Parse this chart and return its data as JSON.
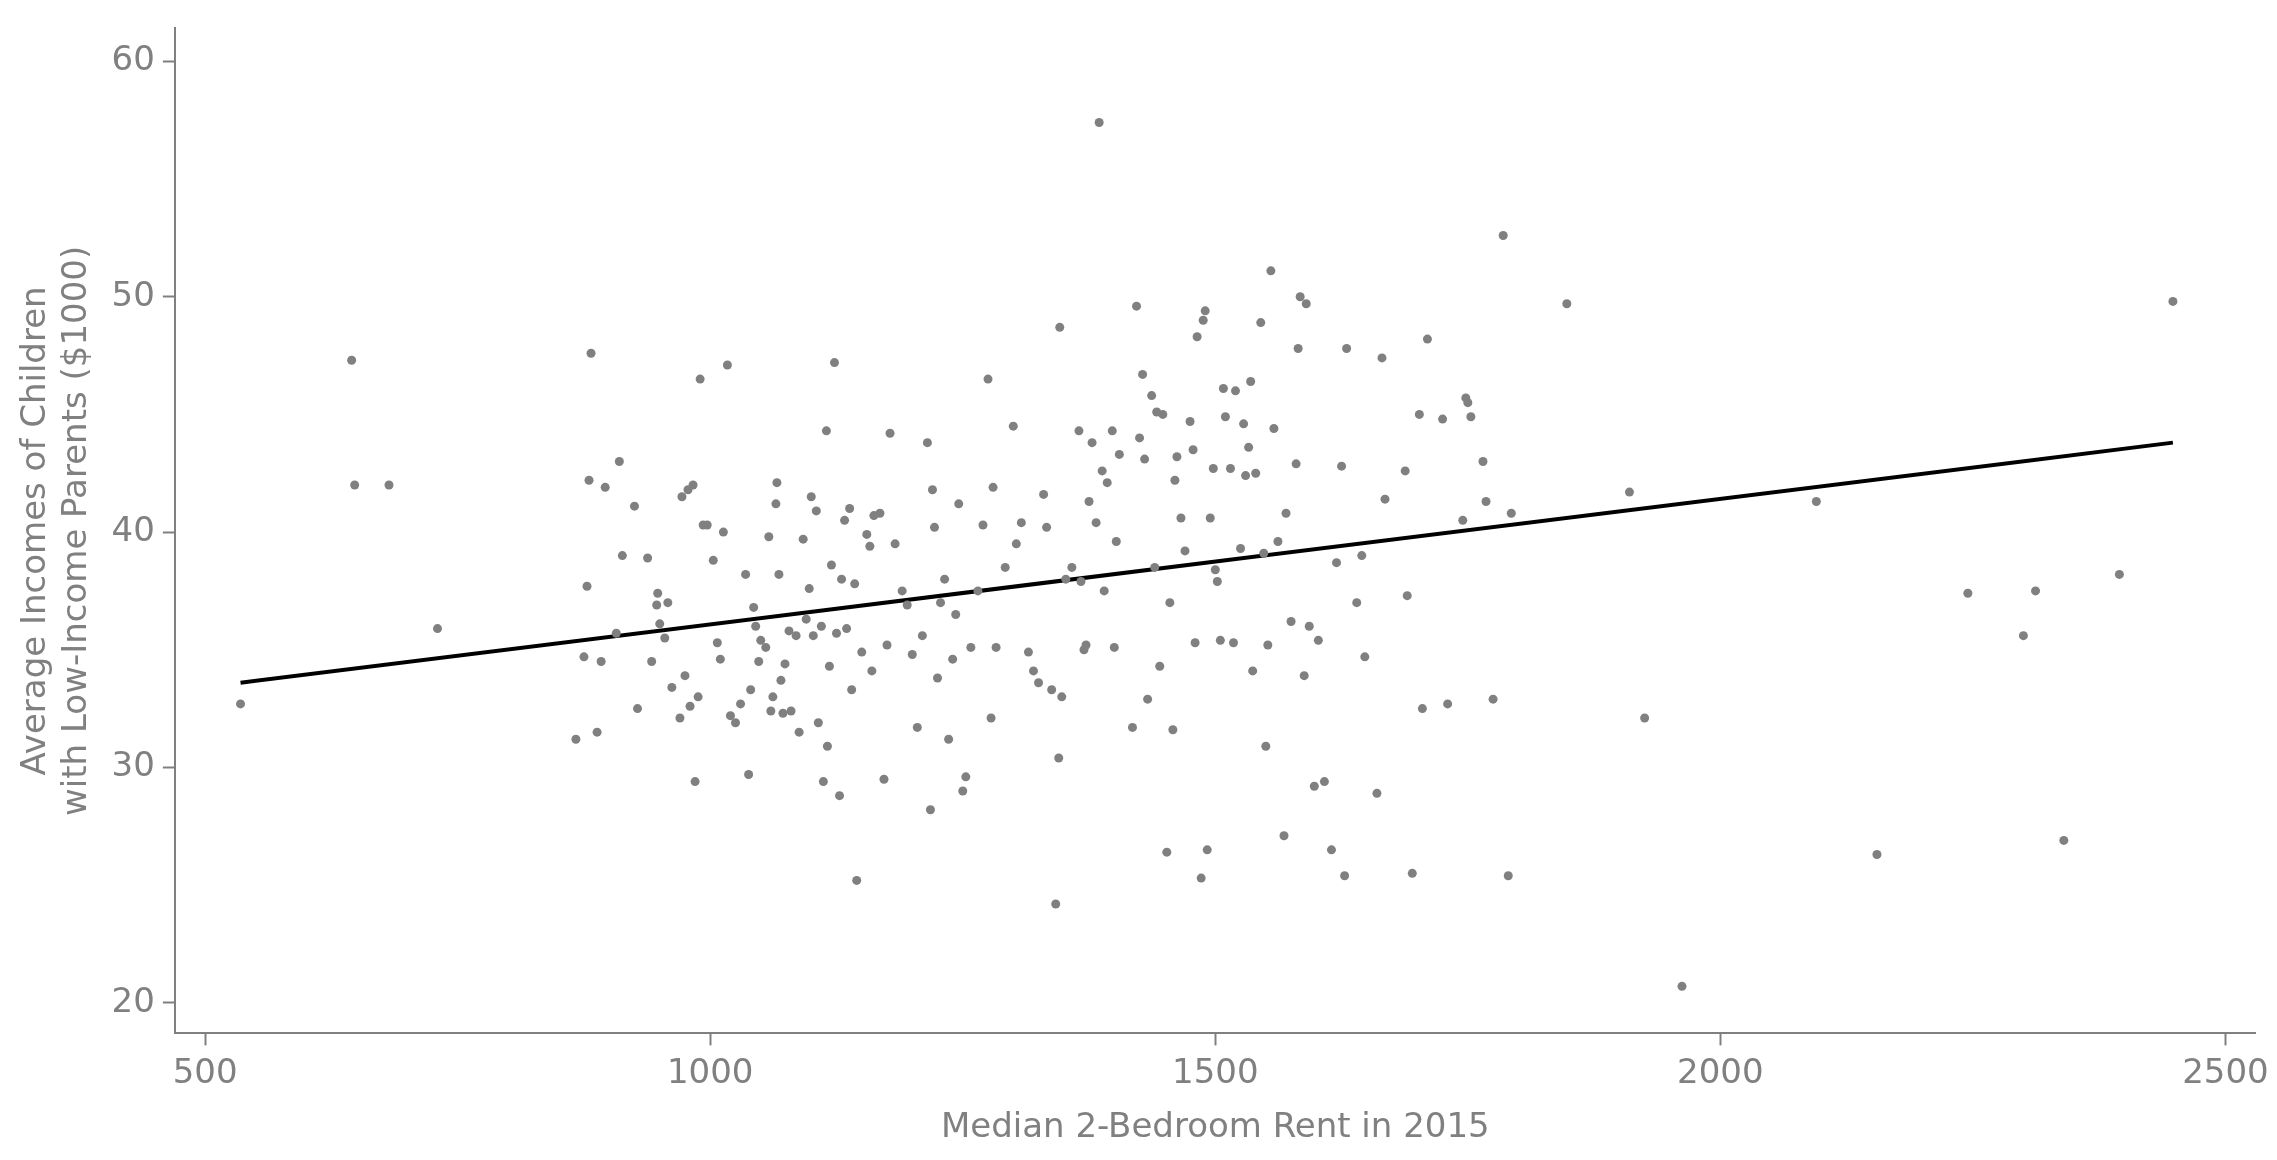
{
  "chart_data": {
    "type": "scatter",
    "xlabel": "Median 2-Bedroom Rent in 2015",
    "ylabel": "Average Incomes of Children\nwith Low-Income Parents ($1000)",
    "xlim": [
      470,
      2530
    ],
    "ylim": [
      18.7,
      61.4
    ],
    "xticks": [
      500,
      1000,
      1500,
      2000,
      2500
    ],
    "yticks": [
      20,
      30,
      40,
      50,
      60
    ],
    "series": [
      {
        "marker": "circle",
        "color": "#808080",
        "x": [
          535,
          645,
          648,
          682,
          730,
          867,
          875,
          878,
          880,
          882,
          888,
          892,
          896,
          907,
          910,
          913,
          925,
          928,
          938,
          942,
          947,
          948,
          950,
          955,
          958,
          962,
          970,
          972,
          975,
          978,
          980,
          983,
          985,
          988,
          990,
          993,
          997,
          1003,
          1007,
          1010,
          1013,
          1017,
          1020,
          1025,
          1030,
          1035,
          1038,
          1040,
          1043,
          1045,
          1048,
          1050,
          1055,
          1058,
          1060,
          1062,
          1065,
          1066,
          1068,
          1070,
          1072,
          1074,
          1078,
          1080,
          1085,
          1088,
          1092,
          1095,
          1098,
          1100,
          1102,
          1105,
          1107,
          1110,
          1112,
          1115,
          1116,
          1118,
          1120,
          1123,
          1125,
          1128,
          1130,
          1133,
          1135,
          1138,
          1140,
          1143,
          1145,
          1150,
          1155,
          1158,
          1160,
          1162,
          1168,
          1172,
          1175,
          1178,
          1183,
          1190,
          1195,
          1200,
          1205,
          1210,
          1215,
          1218,
          1220,
          1222,
          1225,
          1228,
          1232,
          1236,
          1240,
          1243,
          1246,
          1250,
          1253,
          1258,
          1265,
          1270,
          1275,
          1278,
          1280,
          1283,
          1292,
          1300,
          1303,
          1308,
          1315,
          1320,
          1325,
          1330,
          1333,
          1338,
          1342,
          1345,
          1346,
          1348,
          1352,
          1358,
          1365,
          1367,
          1370,
          1372,
          1375,
          1378,
          1382,
          1385,
          1388,
          1390,
          1393,
          1398,
          1400,
          1402,
          1405,
          1418,
          1422,
          1425,
          1428,
          1430,
          1433,
          1437,
          1440,
          1442,
          1445,
          1448,
          1452,
          1455,
          1458,
          1460,
          1462,
          1466,
          1470,
          1475,
          1478,
          1480,
          1482,
          1486,
          1488,
          1490,
          1492,
          1495,
          1498,
          1500,
          1502,
          1505,
          1508,
          1510,
          1515,
          1518,
          1520,
          1525,
          1528,
          1530,
          1533,
          1535,
          1537,
          1540,
          1545,
          1548,
          1550,
          1552,
          1555,
          1558,
          1562,
          1568,
          1570,
          1575,
          1580,
          1582,
          1584,
          1588,
          1590,
          1593,
          1598,
          1602,
          1608,
          1615,
          1620,
          1625,
          1628,
          1630,
          1640,
          1645,
          1648,
          1660,
          1665,
          1668,
          1688,
          1690,
          1695,
          1702,
          1705,
          1710,
          1725,
          1730,
          1745,
          1748,
          1750,
          1753,
          1765,
          1768,
          1775,
          1785,
          1790,
          1793,
          1848,
          1910,
          1925,
          1962,
          2095,
          2155,
          2245,
          2300,
          2312,
          2340,
          2395,
          2448
        ],
        "values": [
          32.7,
          47.3,
          42.0,
          42.0,
          35.9,
          31.2,
          34.7,
          37.7,
          42.2,
          47.6,
          31.5,
          34.5,
          41.9,
          35.7,
          43.0,
          39.0,
          41.1,
          32.5,
          38.9,
          34.5,
          36.9,
          37.4,
          36.1,
          35.5,
          37.0,
          33.4,
          32.1,
          41.5,
          33.9,
          41.8,
          32.6,
          42.0,
          29.4,
          33.0,
          46.5,
          40.3,
          40.3,
          38.8,
          35.3,
          34.6,
          40.0,
          47.1,
          32.2,
          31.9,
          32.7,
          38.2,
          29.7,
          33.3,
          36.8,
          36.0,
          34.5,
          35.4,
          35.1,
          39.8,
          32.4,
          33.0,
          41.2,
          42.1,
          38.2,
          33.7,
          32.3,
          34.4,
          35.8,
          32.4,
          35.6,
          31.5,
          39.7,
          36.3,
          37.6,
          41.5,
          35.6,
          40.9,
          31.9,
          36.0,
          29.4,
          44.3,
          30.9,
          34.3,
          38.6,
          47.2,
          35.7,
          28.8,
          38.0,
          40.5,
          35.9,
          41.0,
          33.3,
          37.8,
          25.2,
          34.9,
          39.9,
          39.4,
          34.1,
          40.7,
          40.8,
          29.5,
          35.2,
          44.2,
          39.5,
          37.5,
          36.9,
          34.8,
          31.7,
          35.6,
          43.8,
          28.2,
          41.8,
          40.2,
          33.8,
          37.0,
          38.0,
          31.2,
          34.6,
          36.5,
          41.2,
          29.0,
          29.6,
          35.1,
          37.5,
          40.3,
          46.5,
          32.1,
          41.9,
          35.1,
          38.5,
          44.5,
          39.5,
          40.4,
          34.9,
          34.1,
          33.6,
          41.6,
          40.2,
          33.3,
          24.2,
          30.4,
          48.7,
          33.0,
          38.0,
          38.5,
          44.3,
          37.9,
          35.0,
          35.2,
          41.3,
          43.8,
          40.4,
          57.4,
          42.6,
          37.5,
          42.1,
          44.3,
          35.1,
          39.6,
          43.3,
          31.7,
          49.6,
          44.0,
          46.7,
          43.1,
          32.9,
          45.8,
          38.5,
          45.1,
          34.3,
          45.0,
          26.4,
          37.0,
          31.6,
          42.2,
          43.2,
          40.6,
          39.2,
          44.7,
          43.5,
          35.3,
          48.3,
          25.3,
          49.0,
          49.4,
          26.5,
          40.6,
          42.7,
          38.4,
          37.9,
          35.4,
          46.1,
          44.9,
          42.7,
          35.3,
          46.0,
          39.3,
          44.6,
          42.4,
          43.6,
          46.4,
          34.1,
          42.5,
          48.9,
          39.1,
          30.9,
          35.2,
          51.1,
          44.4,
          39.6,
          27.1,
          40.8,
          36.2,
          42.9,
          47.8,
          50.0,
          33.9,
          49.7,
          36.0,
          29.2,
          35.4,
          29.4,
          26.5,
          38.7,
          42.8,
          25.4,
          47.8,
          37.0,
          39.0,
          34.7,
          28.9,
          47.4,
          41.4,
          42.6,
          37.3,
          25.5,
          45.0,
          32.5,
          48.2,
          44.8,
          32.7,
          40.5,
          45.7,
          45.5,
          44.9,
          43.0,
          41.3,
          32.9,
          52.6,
          25.4,
          40.8,
          49.7,
          41.7,
          32.1,
          20.7,
          41.3,
          26.3,
          37.4,
          35.6,
          37.5,
          26.9,
          38.2,
          49.8
        ]
      },
      {
        "type": "line",
        "marker": "none",
        "color": "#000000",
        "x": [
          535,
          2448
        ],
        "values": [
          33.6,
          43.8
        ]
      }
    ]
  }
}
